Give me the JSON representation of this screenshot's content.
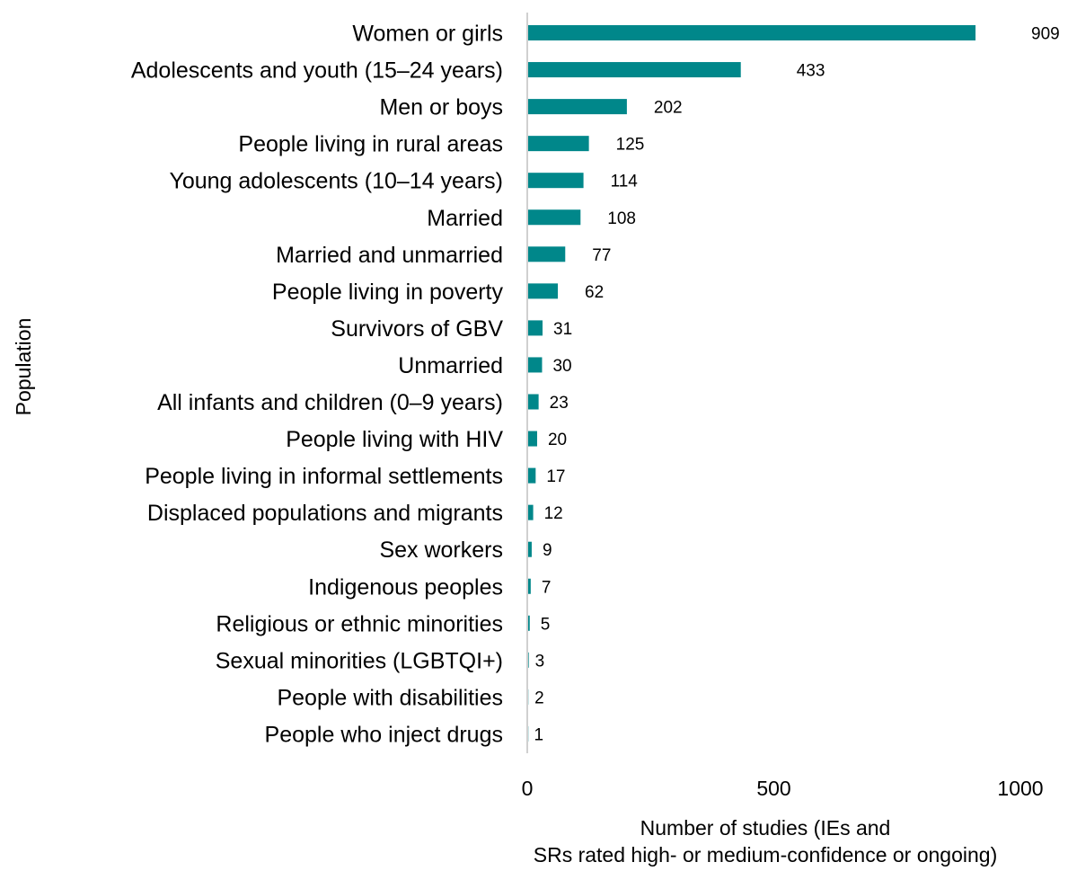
{
  "chart_data": {
    "type": "bar",
    "orientation": "horizontal",
    "categories": [
      "Women or girls",
      "Adolescents and youth (15–24 years)",
      "Men or boys",
      "People living in rural areas",
      "Young adolescents (10–14 years)",
      "Married",
      "Married and unmarried",
      "People living in poverty",
      "Survivors of GBV",
      "Unmarried",
      "All infants and children (0–9 years)",
      "People living with HIV",
      "People living in informal settlements",
      "Displaced populations and migrants",
      "Sex workers",
      "Indigenous peoples",
      "Religious or ethnic minorities",
      "Sexual minorities (LGBTQI+)",
      "People with disabilities",
      "People who inject drugs"
    ],
    "values": [
      909,
      433,
      202,
      125,
      114,
      108,
      77,
      62,
      31,
      30,
      23,
      20,
      17,
      12,
      9,
      7,
      5,
      3,
      2,
      1
    ],
    "xlabel_line1": "Number of studies (IEs and",
    "xlabel_line2": "SRs rated high- or medium-confidence or ongoing)",
    "ylabel": "Population",
    "xlim": [
      0,
      1000
    ],
    "xticks": [
      "0",
      "500",
      "1000"
    ],
    "grid": false,
    "bar_color": "#00878A",
    "axis_color": "#d0d0d0"
  }
}
